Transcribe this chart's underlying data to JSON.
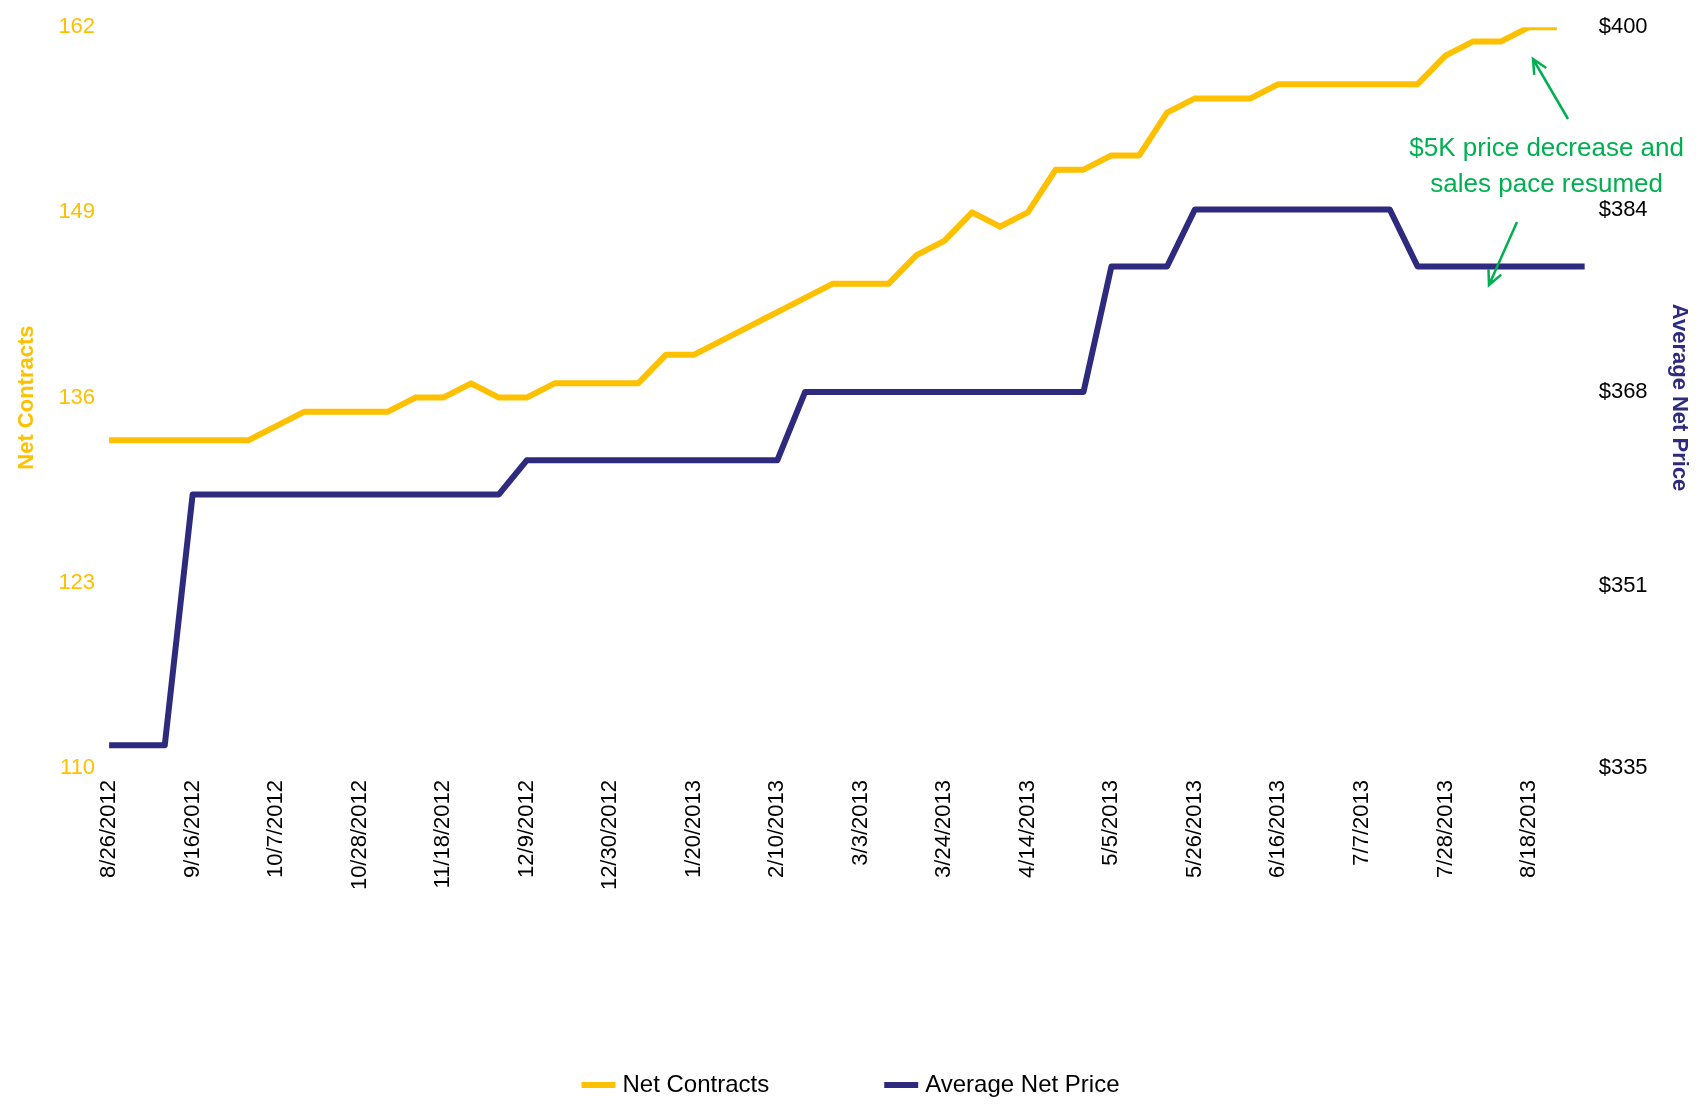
{
  "chart_data": {
    "type": "line",
    "categories": [
      "8/26/2012",
      null,
      null,
      "9/16/2012",
      null,
      null,
      "10/7/2012",
      null,
      null,
      "10/28/2012",
      null,
      null,
      "11/18/2012",
      null,
      null,
      "12/9/2012",
      null,
      null,
      "12/30/2012",
      null,
      null,
      "1/20/2013",
      null,
      null,
      "2/10/2013",
      null,
      null,
      "3/3/2013",
      null,
      null,
      "3/24/2013",
      null,
      null,
      "4/14/2013",
      null,
      null,
      "5/5/2013",
      null,
      null,
      "5/26/2013",
      null,
      null,
      "6/16/2013",
      null,
      null,
      "7/7/2013",
      null,
      null,
      "7/28/2013",
      null,
      null,
      "8/18/2013",
      null,
      null
    ],
    "series": [
      {
        "name": "Net Contracts",
        "color": "#ffc000",
        "values": [
          133,
          133,
          133,
          133,
          133,
          133,
          134,
          135,
          135,
          135,
          135,
          136,
          136,
          137,
          136,
          136,
          137,
          137,
          137,
          137,
          139,
          139,
          140,
          141,
          142,
          143,
          144,
          144,
          144,
          146,
          147,
          149,
          148,
          149,
          152,
          152,
          153,
          153,
          156,
          157,
          157,
          157,
          158,
          158,
          158,
          158,
          158,
          158,
          160,
          161,
          161,
          162,
          162,
          null
        ]
      },
      {
        "name": "Average Net Price",
        "axis": "y2",
        "color": "#2e2b7f",
        "values": [
          337,
          337,
          337,
          359,
          359,
          359,
          359,
          359,
          359,
          359,
          359,
          359,
          359,
          359,
          359,
          362,
          362,
          362,
          362,
          362,
          362,
          362,
          362,
          362,
          362,
          368,
          368,
          368,
          368,
          368,
          368,
          368,
          368,
          368,
          368,
          368,
          379,
          379,
          379,
          384,
          384,
          384,
          384,
          384,
          384,
          384,
          384,
          379,
          379,
          379,
          379,
          379,
          379,
          379
        ]
      }
    ],
    "ylabel": "Net Contracts",
    "y2label": "Average Net Price",
    "ylim": [
      110,
      162
    ],
    "yticks": [
      110,
      123,
      136,
      149,
      162
    ],
    "y2lim": [
      335,
      400
    ],
    "y2ticks": [
      {
        "value": 335,
        "label": "$335"
      },
      {
        "value": 351,
        "label": "$351"
      },
      {
        "value": 368,
        "label": "$368"
      },
      {
        "value": 384,
        "label": "$384"
      },
      {
        "value": 400,
        "label": "$400"
      }
    ],
    "annotations": [
      "$5K price decrease and sales pace resumed"
    ],
    "grid": false,
    "legend": "bottom",
    "marker": "none",
    "line_style": "solid"
  }
}
